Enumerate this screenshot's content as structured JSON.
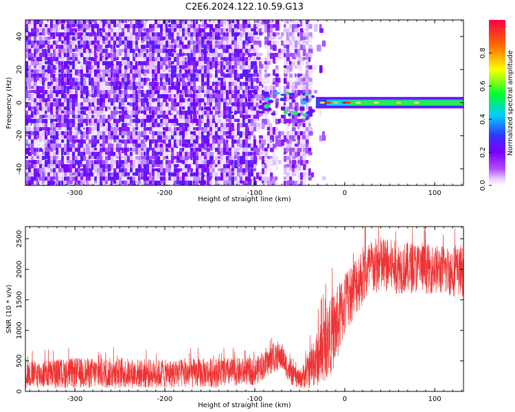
{
  "figure_title": "C2E6.2024.122.10.59.G13",
  "chart_data": [
    {
      "type": "heatmap",
      "xlabel": "Height of straight line (km)",
      "ylabel": "Frequency (Hz)",
      "xlim": [
        -355,
        132
      ],
      "ylim": [
        -50,
        50
      ],
      "x_ticks": [
        "-300",
        "-200",
        "-100",
        "0",
        "100"
      ],
      "y_ticks": [
        "-40",
        "-20",
        "0",
        "20",
        "40"
      ],
      "colorbar": {
        "label": "Normalized spectral amplitude",
        "range": [
          0.0,
          1.0
        ],
        "ticks": [
          "0.0",
          "0.2",
          "0.4",
          "0.6",
          "0.8"
        ],
        "colormap": [
          "#ffffff",
          "#e6ccff",
          "#b34dff",
          "#7a00ff",
          "#3333ff",
          "#00ccff",
          "#00ff33",
          "#ffff00",
          "#ff6600",
          "#ff0044"
        ]
      },
      "features": {
        "noise_region_x": [
          -355,
          -40
        ],
        "signal_band_x": [
          -100,
          132
        ],
        "signal_band_center_hz": 0,
        "signal_band_halfwidth_hz": 3
      }
    },
    {
      "type": "line",
      "xlabel": "Height of straight line (km)",
      "ylabel": "SNR (10 * v/v)",
      "xlim": [
        -355,
        132
      ],
      "ylim": [
        0,
        2700
      ],
      "x_ticks": [
        "-300",
        "-200",
        "-100",
        "0",
        "100"
      ],
      "y_ticks": [
        "0",
        "500",
        "1000",
        "1500",
        "2000",
        "2500"
      ],
      "color": "#ee3333",
      "series": [
        {
          "x": [
            -355,
            -300,
            -250,
            -200,
            -150,
            -100,
            -90,
            -80,
            -70,
            -60,
            -50,
            -40,
            -30,
            -20,
            -10,
            0,
            10,
            20,
            30,
            40,
            60,
            80,
            100,
            120,
            132
          ],
          "y_low": [
            50,
            50,
            50,
            50,
            60,
            100,
            200,
            300,
            350,
            100,
            50,
            50,
            80,
            200,
            400,
            900,
            1200,
            1400,
            1550,
            1600,
            1600,
            1600,
            1600,
            1550,
            1550
          ],
          "y_high": [
            500,
            550,
            550,
            520,
            550,
            550,
            650,
            750,
            800,
            450,
            350,
            650,
            1000,
            1400,
            1700,
            1950,
            2200,
            2400,
            2500,
            2550,
            2450,
            2450,
            2400,
            2400,
            2350
          ]
        }
      ]
    }
  ]
}
